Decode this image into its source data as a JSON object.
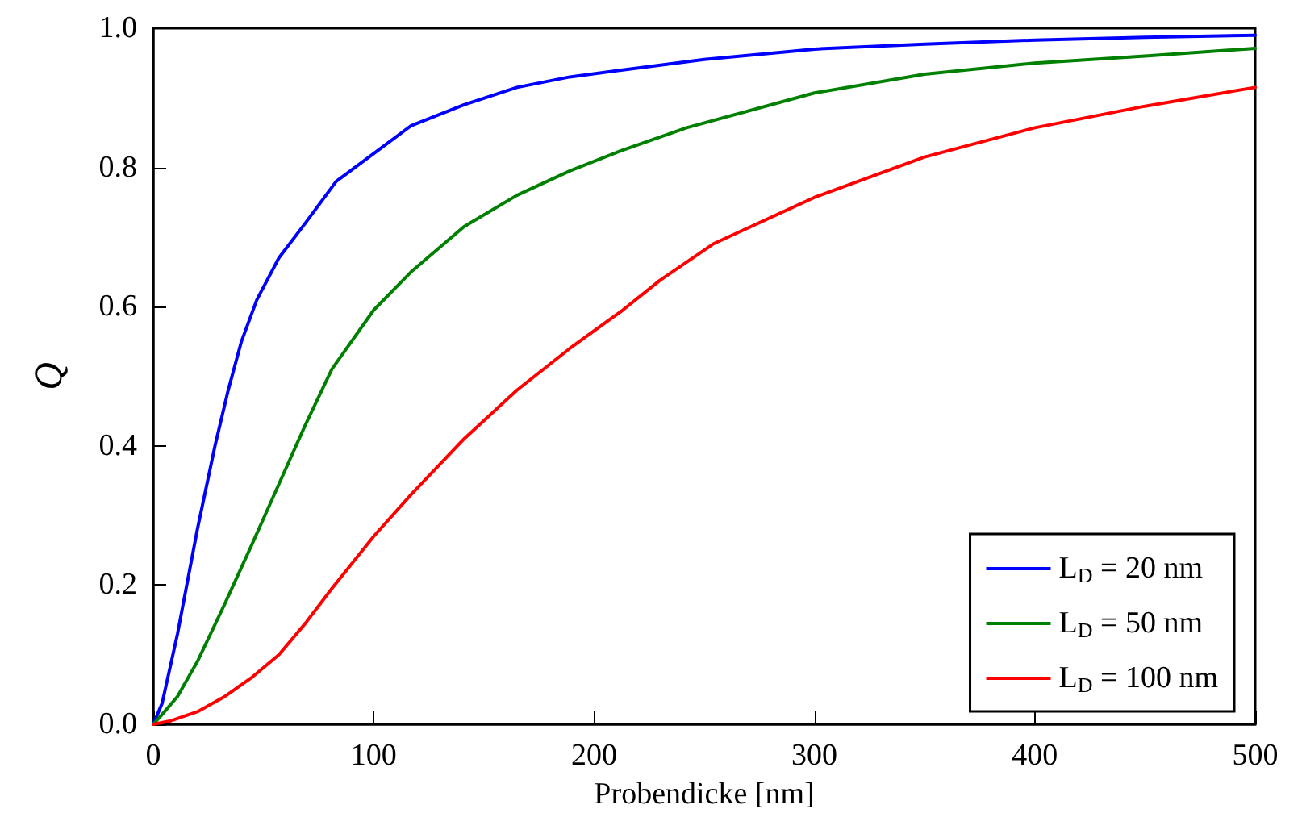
{
  "chart_data": {
    "type": "line",
    "xlabel": "Probendicke [nm]",
    "ylabel": "Q",
    "xlim": [
      0,
      500
    ],
    "xticks": [
      0,
      100,
      200,
      300,
      400,
      500
    ],
    "ylim": [
      0,
      1
    ],
    "yticks": [
      {
        "value": 0,
        "label": "0.0"
      },
      {
        "value": 0.2,
        "label": "0.2"
      },
      {
        "value": 0.4,
        "label": "0.4"
      },
      {
        "value": 0.6,
        "label": "0.6"
      },
      {
        "value": 0.8,
        "label": "0.8"
      },
      {
        "value": 1,
        "label": "1.0"
      }
    ],
    "grid": false,
    "legend": "bottom right",
    "marker": "none",
    "line_style": "solid",
    "series": [
      {
        "name": "L$_{D}$ = 20 nm",
        "color": "#0000ff",
        "x": [
          0,
          4,
          11,
          20,
          28,
          34,
          40,
          47,
          57,
          69,
          83,
          100,
          117,
          141,
          165,
          189,
          213,
          250,
          300,
          350,
          400,
          450,
          500
        ],
        "values": [
          0,
          0.03,
          0.13,
          0.28,
          0.4,
          0.48,
          0.55,
          0.61,
          0.67,
          0.72,
          0.78,
          0.82,
          0.86,
          0.89,
          0.915,
          0.93,
          0.94,
          0.955,
          0.97,
          0.977,
          0.983,
          0.987,
          0.99
        ]
      },
      {
        "name": "L$_{D}$ = 50 nm",
        "color": "#008000",
        "x": [
          0,
          4,
          11,
          20,
          32,
          45,
          57,
          69,
          81,
          100,
          117,
          141,
          165,
          189,
          213,
          242,
          300,
          350,
          400,
          450,
          500
        ],
        "values": [
          0,
          0.014,
          0.04,
          0.09,
          0.17,
          0.26,
          0.345,
          0.43,
          0.51,
          0.595,
          0.65,
          0.715,
          0.76,
          0.795,
          0.825,
          0.857,
          0.907,
          0.934,
          0.95,
          0.96,
          0.971
        ]
      },
      {
        "name": "L$_{D}$ = 100 nm",
        "color": "#ff0000",
        "x": [
          0,
          8,
          20,
          32,
          45,
          57,
          69,
          81,
          100,
          117,
          141,
          165,
          189,
          213,
          230,
          254,
          300,
          350,
          400,
          450,
          500
        ],
        "values": [
          0,
          0.005,
          0.018,
          0.039,
          0.068,
          0.1,
          0.145,
          0.195,
          0.27,
          0.33,
          0.41,
          0.48,
          0.54,
          0.595,
          0.638,
          0.69,
          0.757,
          0.815,
          0.857,
          0.888,
          0.915
        ]
      }
    ]
  }
}
